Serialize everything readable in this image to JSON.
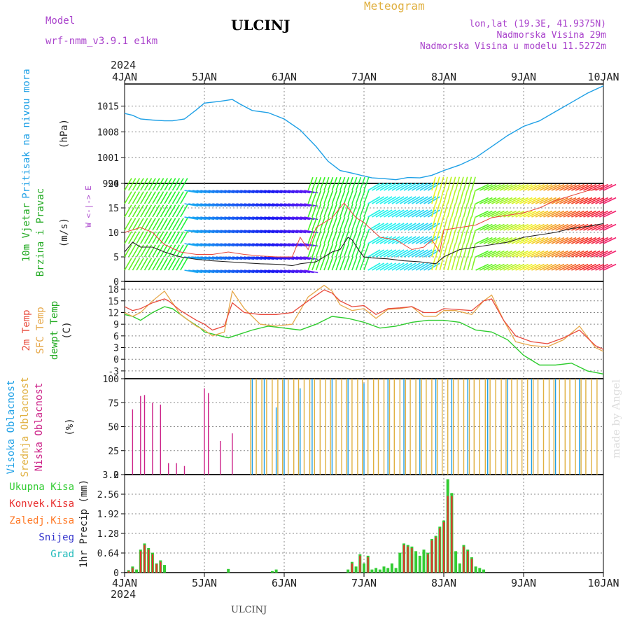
{
  "header": {
    "model_label": "Model",
    "model_name": "wrf-nmm_v3.9.1 e1km",
    "station": "ULCINJ",
    "meteogram": "Meteogram",
    "lonlat": "lon,lat (19.3E, 41.9375N)",
    "elevation": "Nadmorska Visina 29m",
    "model_elevation": "Nadmorska Visina u modelu 11.5272m",
    "year_top": "2024",
    "year_bottom": "2024",
    "footer_station": "ULCINJ",
    "credit": "made by Angel"
  },
  "time_axis": {
    "labels": [
      "4JAN",
      "5JAN",
      "6JAN",
      "7JAN",
      "8JAN",
      "9JAN",
      "10JAN"
    ]
  },
  "colors": {
    "pressure": "#1ea0e6",
    "temp2m": "#e84a3c",
    "sfc_temp": "#e6a84a",
    "dewpt": "#2ecc2e",
    "high_cloud": "#1ea0e6",
    "mid_cloud": "#e0b040",
    "low_cloud": "#cc2288",
    "total_precip": "#33cc33",
    "conv_precip": "#e83030",
    "frozen_precip": "#ff7a28",
    "snow": "#3333cc",
    "hail": "#22bbbb",
    "wind_speed": "#222222",
    "gust": "#e84a3c",
    "purple": "#aa44cc"
  },
  "chart_data": [
    {
      "type": "line",
      "panel": "pressure",
      "title": "",
      "ylabel": "(hPa)",
      "side_label": "Pritisak na nivou mora",
      "ylim": [
        994,
        1021
      ],
      "yticks": [
        "1015",
        "1008",
        "1001",
        "994"
      ],
      "ytick_values": [
        1015,
        1008,
        1001,
        994
      ],
      "series": [
        {
          "name": "Pritisak na nivou mora",
          "x": [
            0,
            0.1,
            0.2,
            0.35,
            0.5,
            0.6,
            0.75,
            0.9,
            1.0,
            1.2,
            1.35,
            1.45,
            1.6,
            1.8,
            2.0,
            2.2,
            2.4,
            2.55,
            2.7,
            2.85,
            3.0,
            3.1,
            3.25,
            3.4,
            3.55,
            3.7,
            3.85,
            4.0,
            4.2,
            4.4,
            4.6,
            4.8,
            5.0,
            5.2,
            5.4,
            5.6,
            5.8,
            6.0
          ],
          "values": [
            1013,
            1012.5,
            1011.5,
            1011.2,
            1011,
            1011,
            1011.5,
            1014,
            1015.8,
            1016.3,
            1016.8,
            1015.5,
            1013.8,
            1013.2,
            1011.5,
            1008.5,
            1004,
            1000,
            997.5,
            996.8,
            996,
            995.5,
            995.3,
            995,
            995.6,
            995.5,
            996.2,
            997.5,
            999,
            1001,
            1004,
            1007,
            1009.5,
            1011,
            1013.5,
            1016,
            1018.5,
            1020.5
          ]
        }
      ]
    },
    {
      "type": "line",
      "panel": "wind",
      "ylabel": "(m/s)",
      "side_labels": [
        "10m Vjetar",
        "Brzina i Pravac"
      ],
      "compass": "W <-|-> E",
      "ylim": [
        0,
        20
      ],
      "yticks": [
        "20",
        "15",
        "10",
        "5",
        "0"
      ],
      "ytick_values": [
        20,
        15,
        10,
        5,
        0
      ],
      "series": [
        {
          "name": "speed",
          "x": [
            0,
            0.1,
            0.2,
            0.35,
            0.5,
            0.7,
            0.9,
            1.1,
            1.3,
            1.5,
            1.7,
            1.9,
            2.0,
            2.1,
            2.2,
            2.4,
            2.6,
            2.7,
            2.8,
            2.85,
            2.95,
            3.0,
            3.1,
            3.3,
            3.5,
            3.7,
            3.9,
            4.0,
            4.2,
            4.4,
            4.6,
            4.8,
            5.0,
            5.2,
            5.4,
            5.6,
            5.8,
            6.0
          ],
          "values": [
            6,
            8,
            7,
            7,
            6,
            5,
            4.5,
            4.2,
            4,
            3.8,
            3.6,
            3.5,
            3.4,
            3.2,
            3.6,
            4,
            6,
            6.5,
            9,
            8.5,
            6,
            5,
            4.8,
            4.6,
            4.2,
            4.0,
            3.6,
            5,
            6.5,
            7,
            7.5,
            8,
            9,
            9.5,
            10,
            10.8,
            11.2,
            11.8
          ]
        },
        {
          "name": "gust",
          "x": [
            0,
            0.2,
            0.35,
            0.5,
            0.7,
            0.9,
            1.1,
            1.3,
            1.5,
            1.7,
            1.9,
            2.1,
            2.2,
            2.3,
            2.4,
            2.6,
            2.75,
            2.9,
            3.0,
            3.2,
            3.4,
            3.6,
            3.75,
            3.85,
            3.95,
            4.0,
            4.2,
            4.4,
            4.6,
            4.8,
            5.0,
            5.2,
            5.4,
            5.6,
            5.8,
            6.0
          ],
          "values": [
            10,
            11,
            10,
            7.5,
            6,
            5.5,
            5.5,
            6,
            5.5,
            5.2,
            5,
            5,
            9,
            6.5,
            11,
            13,
            16,
            13,
            12,
            9,
            8.5,
            6.5,
            7,
            8.5,
            6,
            10.5,
            11,
            11.5,
            13,
            13.5,
            14,
            15,
            16.5,
            17.5,
            18.5,
            19
          ]
        }
      ]
    },
    {
      "type": "line",
      "panel": "temperature",
      "ylabel": "(C)",
      "side_labels": [
        "2m Temp",
        "SFC Temp",
        "dewpt Temp"
      ],
      "ylim": [
        -5,
        20
      ],
      "yticks": [
        "18",
        "15",
        "12",
        "9",
        "6",
        "3",
        "0",
        "-3"
      ],
      "ytick_values": [
        18,
        15,
        12,
        9,
        6,
        3,
        0,
        -3
      ],
      "series": [
        {
          "name": "2m Temp",
          "x": [
            0,
            0.1,
            0.2,
            0.35,
            0.5,
            0.55,
            0.7,
            0.9,
            1.0,
            1.1,
            1.25,
            1.35,
            1.5,
            1.7,
            1.9,
            2.1,
            2.3,
            2.5,
            2.6,
            2.7,
            2.85,
            3.0,
            3.15,
            3.3,
            3.45,
            3.6,
            3.75,
            3.9,
            4.0,
            4.15,
            4.35,
            4.5,
            4.6,
            4.75,
            4.9,
            5.1,
            5.3,
            5.5,
            5.7,
            5.9,
            6.0
          ],
          "values": [
            13.5,
            12.5,
            13,
            14.5,
            15.5,
            15,
            12.5,
            10,
            9,
            7.5,
            8.5,
            14.5,
            12,
            11.5,
            11.5,
            12,
            15,
            17.8,
            17,
            15,
            13.5,
            13.8,
            11.5,
            13,
            13.2,
            13.5,
            12,
            12,
            13,
            12.8,
            12.5,
            15,
            15.5,
            10,
            6,
            4.5,
            4,
            5.5,
            7.5,
            3.5,
            2.5
          ]
        },
        {
          "name": "SFC Temp",
          "x": [
            0,
            0.1,
            0.2,
            0.35,
            0.5,
            0.55,
            0.7,
            0.9,
            1.0,
            1.1,
            1.25,
            1.35,
            1.5,
            1.7,
            1.9,
            2.1,
            2.3,
            2.5,
            2.6,
            2.7,
            2.85,
            3.0,
            3.15,
            3.3,
            3.45,
            3.6,
            3.75,
            3.9,
            4.0,
            4.15,
            4.35,
            4.5,
            4.6,
            4.75,
            4.9,
            5.1,
            5.3,
            5.5,
            5.7,
            5.9,
            6.0
          ],
          "values": [
            12,
            11,
            12,
            15,
            17.5,
            16,
            11.5,
            8.5,
            7.5,
            6,
            7,
            17.5,
            13,
            9,
            8.5,
            9,
            16,
            19,
            17.5,
            14,
            12.5,
            13,
            10.5,
            12.8,
            13,
            13.5,
            11,
            11,
            12.5,
            12.5,
            11.5,
            15,
            16.5,
            10,
            4.5,
            3.5,
            3.2,
            5,
            8.5,
            3,
            2
          ]
        },
        {
          "name": "dewpt Temp",
          "x": [
            0,
            0.1,
            0.2,
            0.35,
            0.5,
            0.6,
            0.8,
            0.95,
            1.0,
            1.1,
            1.3,
            1.45,
            1.6,
            1.8,
            2.0,
            2.2,
            2.4,
            2.6,
            2.8,
            3.0,
            3.2,
            3.4,
            3.6,
            3.8,
            4.0,
            4.2,
            4.4,
            4.6,
            4.8,
            5.0,
            5.2,
            5.4,
            5.6,
            5.8,
            6.0
          ],
          "values": [
            11.5,
            11,
            10,
            12,
            13.5,
            13,
            10,
            8,
            7,
            6.5,
            5.5,
            6.5,
            7.5,
            8.5,
            8,
            7.5,
            9,
            11,
            10.5,
            9.5,
            8,
            8.5,
            9.5,
            10,
            10,
            9.5,
            7.5,
            7,
            5,
            1,
            -1.5,
            -1.5,
            -1,
            -3,
            -3.8
          ]
        }
      ]
    },
    {
      "type": "bar",
      "panel": "cloud",
      "ylabel": "(%)",
      "side_labels": [
        "Visoka Oblacnost",
        "Srednja Oblacnost",
        "Niska Oblacnost"
      ],
      "ylim": [
        0,
        100
      ],
      "yticks": [
        "100",
        "75",
        "50",
        "25",
        "0"
      ],
      "ytick_values": [
        100,
        75,
        50,
        25,
        0
      ],
      "series": [
        {
          "name": "Niska Oblacnost",
          "x": [
            0.1,
            0.2,
            0.25,
            0.35,
            0.45,
            0.55,
            0.65,
            0.75,
            1.0,
            1.05,
            1.2,
            1.35
          ],
          "values": [
            68,
            82,
            83,
            75,
            73,
            12,
            12,
            9,
            90,
            85,
            35,
            43
          ]
        },
        {
          "name": "Srednja Oblacnost",
          "x": [
            1.58,
            1.65,
            1.72,
            1.78,
            1.85,
            1.92,
            1.98,
            2.05,
            2.12,
            2.18,
            2.25,
            2.32,
            2.38,
            2.45,
            2.52,
            2.58,
            2.65,
            2.72,
            2.78,
            2.85,
            2.92,
            2.98,
            3.05,
            3.12,
            3.18,
            3.25,
            3.32,
            3.38,
            3.45,
            3.52,
            3.58,
            3.65,
            3.72,
            3.78,
            3.85,
            3.92,
            3.98,
            4.05,
            4.12,
            4.18,
            4.25,
            4.32,
            4.38,
            4.45,
            4.52,
            4.58,
            4.65,
            4.72,
            4.78,
            4.85,
            4.92,
            4.98,
            5.05,
            5.12,
            5.18,
            5.25,
            5.32,
            5.38,
            5.45,
            5.52,
            5.58,
            5.65,
            5.72,
            5.78,
            5.85,
            5.92
          ],
          "values": [
            100,
            100,
            100,
            100,
            100,
            100,
            100,
            100,
            100,
            100,
            100,
            100,
            100,
            100,
            100,
            100,
            100,
            100,
            100,
            100,
            100,
            100,
            100,
            100,
            100,
            100,
            100,
            100,
            100,
            100,
            100,
            100,
            100,
            100,
            100,
            100,
            100,
            100,
            100,
            100,
            100,
            100,
            100,
            100,
            100,
            100,
            100,
            100,
            100,
            100,
            100,
            100,
            100,
            100,
            100,
            100,
            100,
            100,
            100,
            100,
            100,
            100,
            100,
            100,
            100,
            100
          ]
        },
        {
          "name": "Visoka Oblacnost",
          "x": [
            1.6,
            1.75,
            1.9,
            2.0,
            2.2,
            2.35,
            2.6,
            2.8,
            3.0,
            3.3,
            3.5,
            3.7,
            3.9,
            4.1,
            4.3,
            4.55,
            4.8,
            5.1,
            5.4,
            5.7
          ],
          "values": [
            100,
            100,
            70,
            100,
            90,
            100,
            100,
            100,
            95,
            100,
            100,
            100,
            100,
            100,
            100,
            100,
            100,
            100,
            100,
            100
          ]
        }
      ]
    },
    {
      "type": "bar",
      "panel": "precip",
      "ylabel": "1hr Precip (mm)",
      "side_labels": [
        "Ukupna Kisa",
        "Konvek.Kisa",
        "Zaledj.Kisa",
        "Snijeg",
        "Grad"
      ],
      "ylim": [
        0,
        3.2
      ],
      "yticks": [
        "3.2",
        "2.56",
        "1.92",
        "1.28",
        "0.64",
        "0"
      ],
      "ytick_values": [
        3.2,
        2.56,
        1.92,
        1.28,
        0.64,
        0
      ],
      "series": [
        {
          "name": "Ukupna Kisa",
          "x": [
            0.05,
            0.1,
            0.15,
            0.2,
            0.25,
            0.3,
            0.35,
            0.4,
            0.45,
            0.5,
            1.3,
            1.85,
            1.9,
            2.8,
            2.85,
            2.9,
            2.95,
            3.0,
            3.05,
            3.1,
            3.15,
            3.2,
            3.25,
            3.3,
            3.35,
            3.4,
            3.45,
            3.5,
            3.55,
            3.6,
            3.65,
            3.7,
            3.75,
            3.8,
            3.85,
            3.9,
            3.95,
            4.0,
            4.05,
            4.1,
            4.15,
            4.2,
            4.25,
            4.3,
            4.35,
            4.4,
            4.45,
            4.5
          ],
          "values": [
            0.08,
            0.2,
            0.1,
            0.75,
            0.95,
            0.8,
            0.65,
            0.3,
            0.4,
            0.25,
            0.12,
            0.05,
            0.1,
            0.1,
            0.35,
            0.2,
            0.6,
            0.3,
            0.55,
            0.1,
            0.15,
            0.1,
            0.2,
            0.15,
            0.3,
            0.15,
            0.65,
            0.95,
            0.9,
            0.85,
            0.7,
            0.55,
            0.75,
            0.65,
            1.1,
            1.2,
            1.5,
            1.7,
            3.05,
            2.6,
            0.7,
            0.3,
            0.9,
            0.75,
            0.5,
            0.2,
            0.15,
            0.1
          ]
        },
        {
          "name": "Konvek.Kisa",
          "x": [
            0.05,
            0.1,
            0.2,
            0.25,
            0.3,
            0.35,
            0.4,
            0.45,
            2.85,
            2.95,
            3.05,
            3.5,
            3.55,
            3.6,
            3.8,
            3.85,
            3.9,
            3.95,
            4.0,
            4.05,
            4.1,
            4.25,
            4.3,
            4.35
          ],
          "values": [
            0.05,
            0.15,
            0.7,
            0.9,
            0.75,
            0.6,
            0.28,
            0.35,
            0.3,
            0.55,
            0.5,
            0.9,
            0.85,
            0.8,
            0.6,
            1.05,
            1.15,
            1.45,
            1.65,
            2.5,
            2.5,
            0.85,
            0.7,
            0.45
          ]
        }
      ]
    }
  ]
}
